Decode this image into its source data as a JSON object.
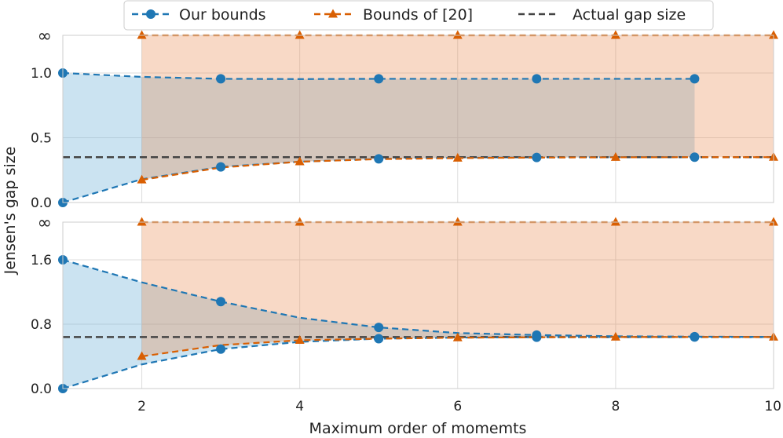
{
  "chart_data": {
    "type": "line",
    "xlabel": "Maximum order of momemts",
    "ylabel": "Jensen's gap size",
    "xlim": [
      1,
      10
    ],
    "xticks": [
      2,
      4,
      6,
      8,
      10
    ],
    "xtick_labels": [
      "2",
      "4",
      "6",
      "8",
      "10"
    ],
    "grid": true,
    "legend_position": "top-center",
    "legend": [
      {
        "name": "Our bounds",
        "color": "#1f77b4",
        "marker": "circle"
      },
      {
        "name": "Bounds of [20]",
        "color": "#d95f02",
        "marker": "triangle"
      },
      {
        "name": "Actual gap size",
        "color": "#444444",
        "marker": "none"
      }
    ],
    "panels": [
      {
        "ylim": [
          0,
          1.0
        ],
        "yticks": [
          0.0,
          0.5,
          1.0
        ],
        "ytick_labels": [
          "0.0",
          "0.5",
          "1.0"
        ],
        "infinity_label": "∞",
        "actual_gap": 0.35,
        "ours_upper": {
          "x": [
            1,
            2,
            3,
            4,
            5,
            6,
            7,
            8,
            9
          ],
          "y": [
            1.0,
            0.97,
            0.955,
            0.953,
            0.955,
            0.955,
            0.955,
            0.955,
            0.955
          ]
        },
        "ours_lower": {
          "x": [
            1,
            2,
            3,
            4,
            5,
            6,
            7,
            8,
            9
          ],
          "y": [
            0.0,
            0.18,
            0.275,
            0.315,
            0.337,
            0.345,
            0.348,
            0.35,
            0.35
          ]
        },
        "ours_marker_x": [
          1,
          3,
          5,
          7,
          9
        ],
        "ref_upper": {
          "x": [
            2,
            3,
            4,
            5,
            6,
            7,
            8,
            9,
            10
          ],
          "y": [
            "inf",
            "inf",
            "inf",
            "inf",
            "inf",
            "inf",
            "inf",
            "inf",
            "inf"
          ]
        },
        "ref_lower": {
          "x": [
            2,
            3,
            4,
            5,
            6,
            7,
            8,
            9,
            10
          ],
          "y": [
            0.175,
            0.27,
            0.315,
            0.335,
            0.343,
            0.347,
            0.349,
            0.35,
            0.35
          ]
        },
        "ref_marker_x": [
          2,
          4,
          6,
          8,
          10
        ]
      },
      {
        "ylim": [
          0,
          1.6
        ],
        "yticks": [
          0.0,
          0.8,
          1.6
        ],
        "ytick_labels": [
          "0.0",
          "0.8",
          "1.6"
        ],
        "infinity_label": "∞",
        "actual_gap": 0.64,
        "ours_upper": {
          "x": [
            1,
            2,
            3,
            4,
            5,
            6,
            7,
            8,
            9,
            10
          ],
          "y": [
            1.6,
            1.32,
            1.08,
            0.88,
            0.76,
            0.69,
            0.665,
            0.65,
            0.645,
            0.642
          ]
        },
        "ours_lower": {
          "x": [
            1,
            2,
            3,
            4,
            5,
            6,
            7,
            8,
            9,
            10
          ],
          "y": [
            0.0,
            0.3,
            0.49,
            0.58,
            0.62,
            0.633,
            0.638,
            0.64,
            0.64,
            0.64
          ]
        },
        "ours_marker_x": [
          1,
          3,
          5,
          7,
          9
        ],
        "ref_upper": {
          "x": [
            2,
            3,
            4,
            5,
            6,
            7,
            8,
            9,
            10
          ],
          "y": [
            "inf",
            "inf",
            "inf",
            "inf",
            "inf",
            "inf",
            "inf",
            "inf",
            "inf"
          ]
        },
        "ref_lower": {
          "x": [
            2,
            3,
            4,
            5,
            6,
            7,
            8,
            9,
            10
          ],
          "y": [
            0.4,
            0.54,
            0.6,
            0.62,
            0.632,
            0.637,
            0.64,
            0.64,
            0.64
          ]
        },
        "ref_marker_x": [
          2,
          4,
          6,
          8,
          10
        ]
      }
    ]
  }
}
